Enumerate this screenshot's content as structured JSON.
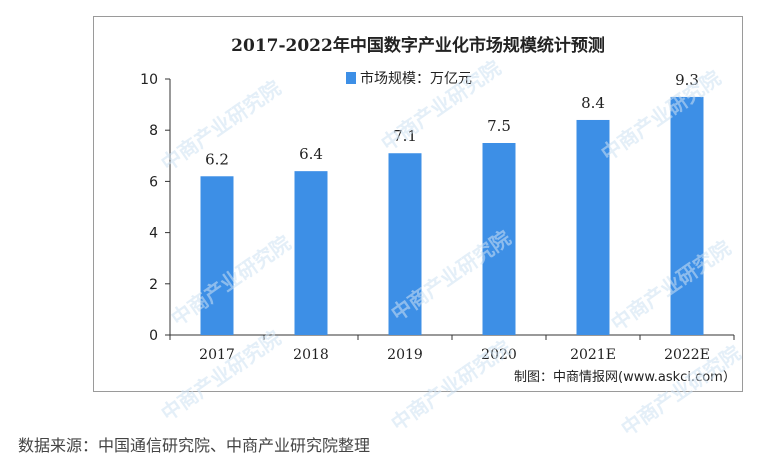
{
  "colors": {
    "bar": "#3d8fe6",
    "axis": "#333333",
    "text": "#222222",
    "watermark": "#cfe2f3"
  },
  "watermark_text": "中商产业研究院",
  "footer": {
    "source_text": "数据来源：中国通信研究院、中商产业研究院整理"
  },
  "chart_data": {
    "type": "bar",
    "title": "2017-2022年中国数字产业化市场规模统计预测",
    "categories": [
      "2017",
      "2018",
      "2019",
      "2020",
      "2021E",
      "2022E"
    ],
    "series": [
      {
        "name": "市场规模：万亿元",
        "values": [
          6.2,
          6.4,
          7.1,
          7.5,
          8.4,
          9.3
        ]
      }
    ],
    "value_labels": [
      "6.2",
      "6.4",
      "7.1",
      "7.5",
      "8.4",
      "9.3"
    ],
    "ylim": [
      0,
      10
    ],
    "yticks": [
      0,
      2,
      4,
      6,
      8,
      10
    ],
    "xlabel": "",
    "ylabel": "",
    "legend_position": "top",
    "grid": false,
    "credit": "制图：中商情报网(www.askci.com）"
  }
}
